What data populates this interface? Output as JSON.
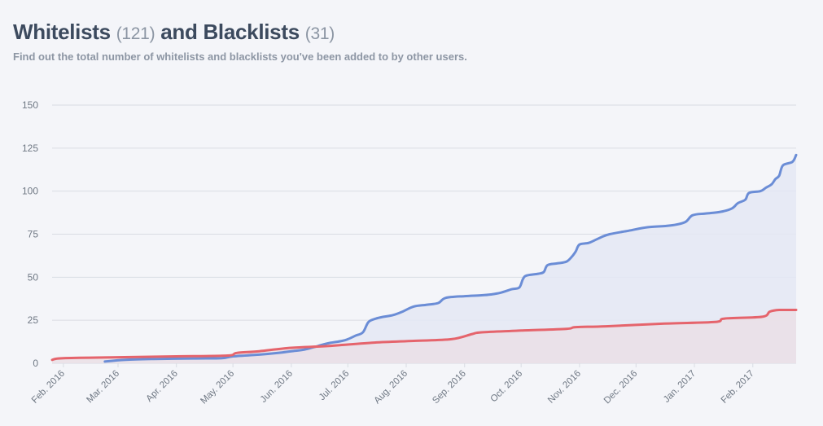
{
  "header": {
    "title_part1": "Whitelists",
    "whitelist_count": "(121)",
    "title_part2": "and Blacklists",
    "blacklist_count": "(31)",
    "subtitle": "Find out the total number of whitelists and blacklists you've been added to by other users."
  },
  "colors": {
    "whitelist": "#6b8dd6",
    "blacklist": "#e5646c",
    "whitelist_fill": "#e4e8f5",
    "blacklist_fill": "#eadfe6",
    "grid": "#d9dce3",
    "text": "#3c4a5e"
  },
  "chart_data": {
    "type": "area",
    "title": "Whitelists (121) and Blacklists (31)",
    "subtitle": "Find out the total number of whitelists and blacklists you've been added to by other users.",
    "ylim": [
      0,
      150
    ],
    "yticks": [
      0,
      25,
      50,
      75,
      100,
      125,
      150
    ],
    "xlim": [
      "2016-01-26",
      "2017-02-24"
    ],
    "x_ticks": [
      {
        "date": "2016-02-01",
        "label": "Feb. 2016"
      },
      {
        "date": "2016-03-01",
        "label": "Mar. 2016"
      },
      {
        "date": "2016-04-01",
        "label": "Apr. 2016"
      },
      {
        "date": "2016-05-01",
        "label": "May. 2016"
      },
      {
        "date": "2016-06-01",
        "label": "Jun. 2016"
      },
      {
        "date": "2016-07-01",
        "label": "Jul. 2016"
      },
      {
        "date": "2016-08-01",
        "label": "Aug. 2016"
      },
      {
        "date": "2016-09-01",
        "label": "Sep. 2016"
      },
      {
        "date": "2016-10-01",
        "label": "Oct. 2016"
      },
      {
        "date": "2016-11-01",
        "label": "Nov. 2016"
      },
      {
        "date": "2016-12-01",
        "label": "Dec. 2016"
      },
      {
        "date": "2017-01-01",
        "label": "Jan. 2017"
      },
      {
        "date": "2017-02-01",
        "label": "Feb. 2017"
      }
    ],
    "grid": true,
    "legend": "none",
    "series": [
      {
        "name": "Whitelists",
        "color": "#6b8dd6",
        "fill": "#e4e8f5",
        "points": [
          [
            "2016-02-23",
            1
          ],
          [
            "2016-03-05",
            2
          ],
          [
            "2016-03-20",
            2.5
          ],
          [
            "2016-04-10",
            2.8
          ],
          [
            "2016-04-25",
            3
          ],
          [
            "2016-05-01",
            4
          ],
          [
            "2016-05-15",
            5
          ],
          [
            "2016-05-25",
            6
          ],
          [
            "2016-06-01",
            7
          ],
          [
            "2016-06-08",
            8
          ],
          [
            "2016-06-15",
            10
          ],
          [
            "2016-06-20",
            11.5
          ],
          [
            "2016-06-28",
            13
          ],
          [
            "2016-07-01",
            14
          ],
          [
            "2016-07-05",
            16
          ],
          [
            "2016-07-09",
            18
          ],
          [
            "2016-07-12",
            24
          ],
          [
            "2016-07-16",
            26
          ],
          [
            "2016-07-20",
            27
          ],
          [
            "2016-07-25",
            28
          ],
          [
            "2016-07-30",
            30
          ],
          [
            "2016-08-05",
            33
          ],
          [
            "2016-08-12",
            34
          ],
          [
            "2016-08-18",
            35
          ],
          [
            "2016-08-22",
            38
          ],
          [
            "2016-09-01",
            39
          ],
          [
            "2016-09-10",
            39.5
          ],
          [
            "2016-09-15",
            40
          ],
          [
            "2016-09-20",
            41
          ],
          [
            "2016-09-26",
            43
          ],
          [
            "2016-09-30",
            44
          ],
          [
            "2016-10-02",
            49
          ],
          [
            "2016-10-04",
            51
          ],
          [
            "2016-10-10",
            52
          ],
          [
            "2016-10-13",
            53
          ],
          [
            "2016-10-15",
            57
          ],
          [
            "2016-10-20",
            58
          ],
          [
            "2016-10-25",
            59
          ],
          [
            "2016-10-28",
            62
          ],
          [
            "2016-10-30",
            65
          ],
          [
            "2016-11-01",
            69
          ],
          [
            "2016-11-06",
            70
          ],
          [
            "2016-11-12",
            73
          ],
          [
            "2016-11-17",
            75
          ],
          [
            "2016-11-27",
            77
          ],
          [
            "2016-12-07",
            79
          ],
          [
            "2016-12-19",
            80
          ],
          [
            "2016-12-27",
            82
          ],
          [
            "2016-12-31",
            86
          ],
          [
            "2017-01-07",
            87
          ],
          [
            "2017-01-15",
            88
          ],
          [
            "2017-01-21",
            90
          ],
          [
            "2017-01-24",
            93
          ],
          [
            "2017-01-28",
            95
          ],
          [
            "2017-01-30",
            99
          ],
          [
            "2017-02-05",
            100
          ],
          [
            "2017-02-08",
            102
          ],
          [
            "2017-02-11",
            104
          ],
          [
            "2017-02-13",
            107
          ],
          [
            "2017-02-15",
            109
          ],
          [
            "2017-02-17",
            115
          ],
          [
            "2017-02-22",
            117
          ],
          [
            "2017-02-24",
            121
          ]
        ]
      },
      {
        "name": "Blacklists",
        "color": "#e5646c",
        "fill": "#eadfe6",
        "points": [
          [
            "2016-01-26",
            2
          ],
          [
            "2016-02-01",
            3
          ],
          [
            "2016-03-01",
            3.5
          ],
          [
            "2016-04-01",
            4
          ],
          [
            "2016-04-28",
            4.5
          ],
          [
            "2016-05-03",
            6
          ],
          [
            "2016-05-15",
            7
          ],
          [
            "2016-06-01",
            9
          ],
          [
            "2016-06-20",
            10
          ],
          [
            "2016-07-15",
            12
          ],
          [
            "2016-08-05",
            13
          ],
          [
            "2016-08-25",
            14
          ],
          [
            "2016-09-05",
            17
          ],
          [
            "2016-09-10",
            18
          ],
          [
            "2016-10-01",
            19
          ],
          [
            "2016-10-25",
            20
          ],
          [
            "2016-10-30",
            21
          ],
          [
            "2016-11-15",
            21.5
          ],
          [
            "2016-12-15",
            23
          ],
          [
            "2017-01-12",
            24
          ],
          [
            "2017-01-17",
            26
          ],
          [
            "2017-02-06",
            27
          ],
          [
            "2017-02-10",
            30
          ],
          [
            "2017-02-15",
            31
          ],
          [
            "2017-02-24",
            31
          ]
        ]
      }
    ]
  }
}
